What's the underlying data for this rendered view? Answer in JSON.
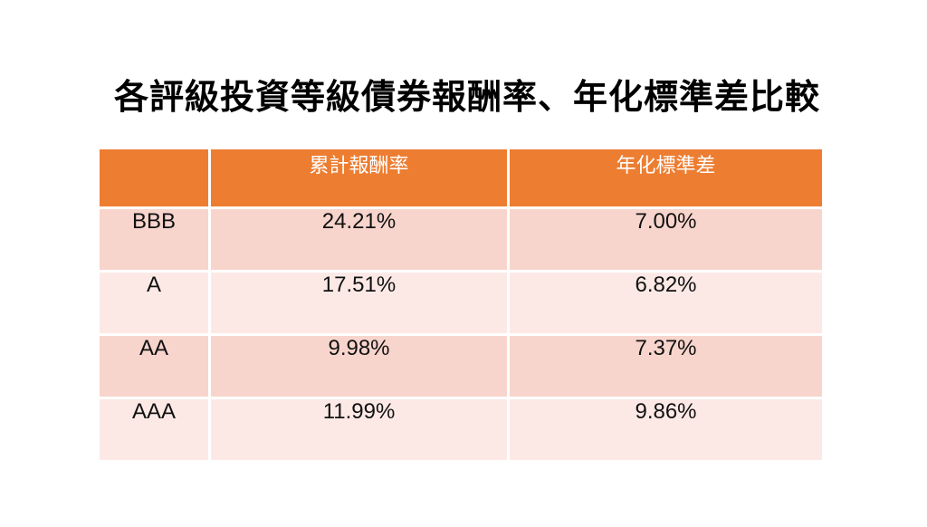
{
  "title": "各評級投資等級債券報酬率、年化標準差比較",
  "table": {
    "headers": [
      "",
      "累計報酬率",
      "年化標準差"
    ],
    "rows": [
      {
        "rating": "BBB",
        "cumulative_return": "24.21%",
        "annualized_std": "7.00%"
      },
      {
        "rating": "A",
        "cumulative_return": "17.51%",
        "annualized_std": "6.82%"
      },
      {
        "rating": "AA",
        "cumulative_return": "9.98%",
        "annualized_std": "7.37%"
      },
      {
        "rating": "AAA",
        "cumulative_return": "11.99%",
        "annualized_std": "9.86%"
      }
    ]
  },
  "colors": {
    "header_bg": "#ED7D31",
    "row_band_1": "#F8D5CC",
    "row_band_2": "#FCE9E6"
  }
}
